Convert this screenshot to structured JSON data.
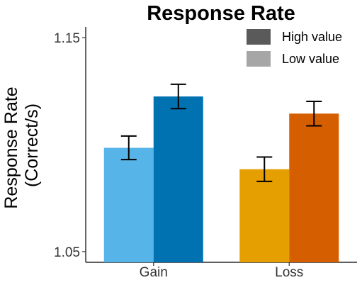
{
  "chart_data": {
    "type": "bar",
    "title": "Response Rate",
    "ylabel_lines": [
      "Response Rate",
      "(Correct/s)"
    ],
    "xlabel": "",
    "categories": [
      "Gain",
      "Loss"
    ],
    "ylim": [
      1.045,
      1.155
    ],
    "yticks": [
      1.05,
      1.15
    ],
    "ytick_labels": [
      "1.05",
      "1.15"
    ],
    "grid": false,
    "legend_position": "top-right",
    "series": [
      {
        "name": "Low value",
        "legend_color": "#a6a6a6",
        "values": [
          1.0985,
          1.0885
        ],
        "errors": [
          0.0055,
          0.0057
        ],
        "colors": [
          "#56b4e9",
          "#e69f00"
        ]
      },
      {
        "name": "High value",
        "legend_color": "#5a5a5a",
        "values": [
          1.1225,
          1.1145
        ],
        "errors": [
          0.0057,
          0.0057
        ],
        "colors": [
          "#0072b2",
          "#d55e00"
        ]
      }
    ],
    "legend_order": [
      1,
      0
    ]
  }
}
